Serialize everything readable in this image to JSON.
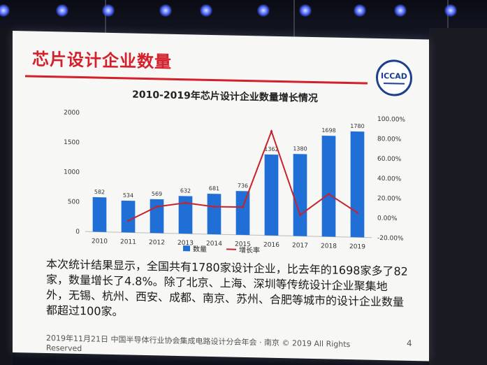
{
  "slide": {
    "title": "芯片设计企业数量",
    "logo_text": "ICCAD",
    "body": "本次统计结果显示，全国共有1780家设计企业，比去年的1698家多了82家，数量增长了4.8%。除了北京、上海、深圳等传统设计企业聚集地外，无锡、杭州、西安、成都、南京、苏州、合肥等城市的设计企业数量都超过100家。",
    "footer": "2019年11月21日  中国半导体行业协会集成电路设计分会年会 · 南京 © 2019 All Rights Reserved",
    "page_number": "4"
  },
  "colors": {
    "bar": "#1f6fd6",
    "line": "#c8232c",
    "title_red": "#d3202a"
  },
  "chart_data": {
    "type": "bar",
    "title": "2010-2019年芯片设计企业数量增长情况",
    "categories": [
      "2010",
      "2011",
      "2012",
      "2013",
      "2014",
      "2015",
      "2016",
      "2017",
      "2018",
      "2019"
    ],
    "series": [
      {
        "name": "数量",
        "type": "bar",
        "axis": "left",
        "values": [
          582,
          534,
          569,
          632,
          681,
          736,
          1362,
          1380,
          1698,
          1780
        ]
      },
      {
        "name": "增长率",
        "type": "line",
        "axis": "right",
        "values": [
          null,
          -8.2,
          6.6,
          11.1,
          7.8,
          8.1,
          85.1,
          1.3,
          23.0,
          4.8
        ]
      }
    ],
    "data_labels": [
      "582",
      "534",
      "569",
      "632",
      "681",
      "736",
      "1362",
      "1380",
      "1698",
      "1780"
    ],
    "y_left": {
      "ticks": [
        "0",
        "500",
        "1000",
        "1500",
        "2000"
      ],
      "lim": [
        0,
        2000
      ]
    },
    "y_right": {
      "ticks": [
        "-20.00%",
        "0.00%",
        "20.00%",
        "40.00%",
        "60.00%",
        "80.00%",
        "100.00%"
      ],
      "lim": [
        -20,
        100
      ]
    },
    "legend": {
      "position": "bottom",
      "items": [
        "数量",
        "增长率"
      ]
    },
    "grid": false
  }
}
